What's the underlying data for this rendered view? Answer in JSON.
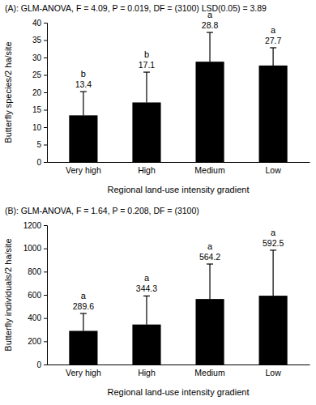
{
  "chart_data": [
    {
      "type": "bar",
      "title": "(A): GLM-ANOVA, F = 4.09, P = 0.019, DF = (3100) LSD(0.05) = 3.89",
      "x_label": "Regional land-use intensity gradient",
      "y_label": "Butterfly species/2 ha/site",
      "categories": [
        "Very high",
        "High",
        "Medium",
        "Low"
      ],
      "values": [
        13.4,
        17.1,
        28.8,
        27.7
      ],
      "errors": [
        6.8,
        8.7,
        8.4,
        5.1
      ],
      "annotations": [
        "b",
        "b",
        "a",
        "a"
      ],
      "color": "#000000",
      "data_labels": true,
      "ylim": [
        0,
        40
      ],
      "yticks": [
        0,
        5,
        10,
        15,
        20,
        25,
        30,
        35,
        40
      ],
      "grid": false
    },
    {
      "type": "bar",
      "title": "(B): GLM-ANOVA, F = 1.64, P = 0.208, DF = (3100)",
      "x_label": "Regional land-use intensity gradient",
      "y_label": "Butterfly individuals/2 ha/site",
      "categories": [
        "Very high",
        "High",
        "Medium",
        "Low"
      ],
      "values": [
        289.6,
        344.3,
        564.2,
        592.5
      ],
      "errors": [
        150,
        246,
        301,
        392
      ],
      "annotations": [
        "a",
        "a",
        "a",
        "a"
      ],
      "color": "#000000",
      "data_labels": true,
      "ylim": [
        0,
        1200
      ],
      "yticks": [
        0,
        200,
        400,
        600,
        800,
        1000,
        1200
      ],
      "grid": false
    }
  ]
}
